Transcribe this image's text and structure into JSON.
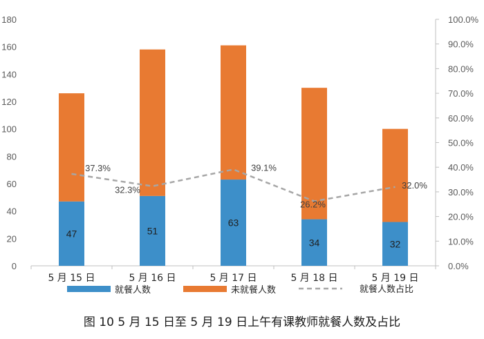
{
  "caption": "图 10  5 月 15 日至 5 月 19 日上午有课教师就餐人数及占比",
  "chart_data": {
    "type": "bar",
    "stacked": true,
    "categories": [
      "5 月 15 日",
      "5 月 16 日",
      "5 月 17 日",
      "5 月 18 日",
      "5 月 19 日"
    ],
    "series": [
      {
        "name": "就餐人数",
        "values": [
          47,
          51,
          63,
          34,
          32
        ],
        "color": "#3d8fc9",
        "labels": [
          "47",
          "51",
          "63",
          "34",
          "32"
        ]
      },
      {
        "name": "未就餐人数",
        "values": [
          79,
          107,
          98,
          96,
          68
        ],
        "color": "#e87a32"
      }
    ],
    "line_series": {
      "name": "就餐人数占比",
      "values": [
        37.3,
        32.3,
        39.1,
        26.2,
        32.0
      ],
      "labels": [
        "37.3%",
        "32.3%",
        "39.1%",
        "26.2%",
        "32.0%"
      ],
      "color": "#a6a6a6",
      "style": "dashed",
      "axis": "right"
    },
    "ylim": [
      0,
      180
    ],
    "yticks": [
      "0",
      "20",
      "40",
      "60",
      "80",
      "100",
      "120",
      "140",
      "160",
      "180"
    ],
    "y2lim": [
      0,
      100
    ],
    "y2ticks": [
      "0.0%",
      "10.0%",
      "20.0%",
      "30.0%",
      "40.0%",
      "50.0%",
      "60.0%",
      "70.0%",
      "80.0%",
      "90.0%",
      "100.0%"
    ],
    "grid": false,
    "legend": "bottom"
  }
}
